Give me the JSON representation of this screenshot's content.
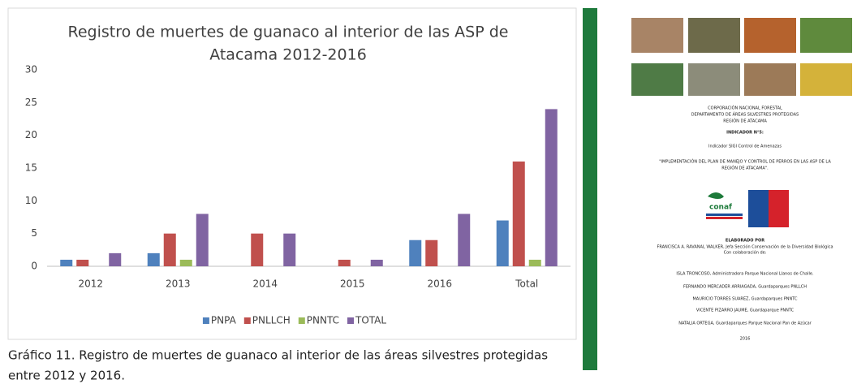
{
  "chart_data": {
    "type": "bar",
    "title": [
      "Registro de muertes de guanaco al interior de las ASP de",
      "Atacama 2012-2016"
    ],
    "categories": [
      "2012",
      "2013",
      "2014",
      "2015",
      "2016",
      "Total"
    ],
    "series": [
      {
        "name": "PNPA",
        "color": "#4f81bd",
        "values": [
          1,
          2,
          0,
          0,
          4,
          7
        ]
      },
      {
        "name": "PNLLCH",
        "color": "#c0504d",
        "values": [
          1,
          5,
          5,
          1,
          4,
          16
        ]
      },
      {
        "name": "PNNTC",
        "color": "#9bbb59",
        "values": [
          0,
          1,
          0,
          0,
          0,
          1
        ]
      },
      {
        "name": "TOTAL",
        "color": "#8064a2",
        "values": [
          2,
          8,
          5,
          1,
          8,
          24
        ]
      }
    ],
    "ylim": [
      0,
      30
    ],
    "yticks": [
      0,
      5,
      10,
      15,
      20,
      25,
      30
    ],
    "grid": false,
    "legend": "bottom"
  },
  "caption": [
    "Gráfico 11. Registro de muertes de guanaco al interior de las áreas silvestres protegidas",
    "entre 2012 y 2016."
  ],
  "cover": {
    "lines": [
      "CORPORACIÓN NACIONAL FORESTAL",
      "DEPARTAMENTO DE ÁREAS SILVESTRES PROTEGIDAS",
      "REGIÓN DE ATACAMA",
      "INDICADOR N°5:",
      "Indicador SIGI Control de Amenazas",
      "\"IMPLEMENTACIÓN DEL PLAN DE MANEJO Y CONTROL DE PERROS  EN LAS ASP DE LA",
      "REGIÓN DE ATACAMA\".",
      "ELABORADO POR",
      "FRANCISCA A. RAVANAL WALKER, Jefa Sección Conservación de la Diversidad Biológica",
      "Con colaboración de:",
      "ISLA TRONCOSO, Administradora Parque Nacional Llanos de Challe.",
      "FERNANDO MERCADER ARRIAGADA, Guardaparques PNLLCH",
      "MAURICIO TORRES SUAREZ, Guardaparques PNNTC",
      "VICENTE PIZARRO JAUME, Guardaparque PNNTC",
      "NATALIA ORTEGA, Guardaparques Parque Nacional Pan de Azúcar",
      "2016"
    ],
    "logo": "conaf"
  }
}
